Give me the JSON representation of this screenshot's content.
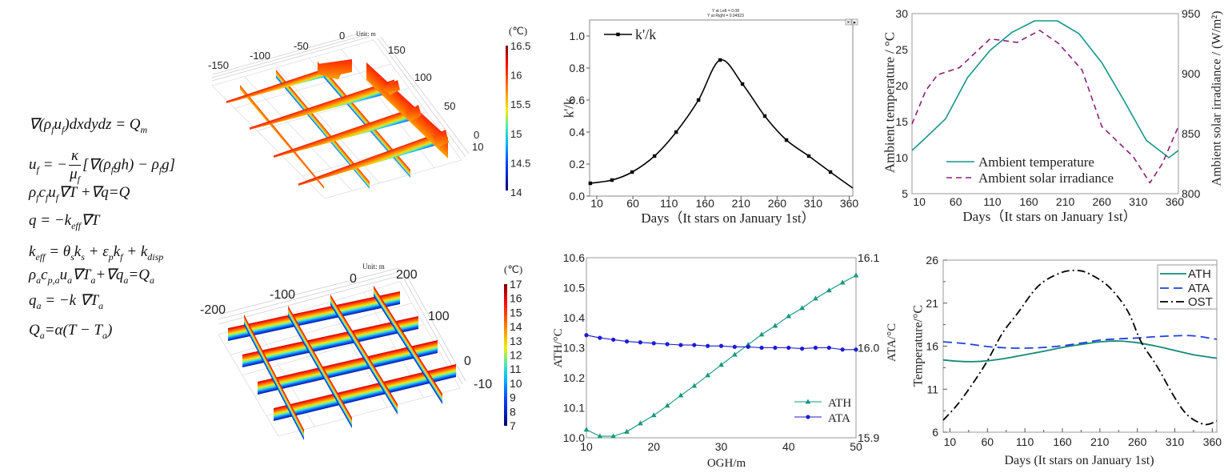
{
  "equations": [
    [
      [
        "∇("
      ],
      [
        "ρ",
        "f"
      ],
      [
        "u",
        "f"
      ],
      [
        ")dxdydz = "
      ],
      [
        "Q",
        "m"
      ]
    ],
    [
      [
        "u",
        "f"
      ],
      [
        " = −"
      ],
      {
        "num": [
          [
            "κ"
          ]
        ],
        "den": [
          [
            "μ",
            "f"
          ]
        ]
      },
      [
        "[∇("
      ],
      [
        "ρ",
        "f"
      ],
      [
        "gh) − "
      ],
      [
        "ρ",
        "f"
      ],
      [
        "g]"
      ]
    ],
    [
      [
        "ρ",
        "f"
      ],
      [
        "c",
        "f"
      ],
      [
        "u",
        "f"
      ],
      [
        "∇T +∇q=Q"
      ]
    ],
    [
      [
        "q = −"
      ],
      [
        "k",
        "eff"
      ],
      [
        "∇T"
      ]
    ],
    [
      [
        "k",
        "eff"
      ],
      [
        " = "
      ],
      [
        "θ",
        "s"
      ],
      [
        "k",
        "s"
      ],
      [
        " + "
      ],
      [
        "ε",
        "p"
      ],
      [
        "k",
        "f"
      ],
      [
        " + "
      ],
      [
        "k",
        "disp"
      ]
    ],
    [
      [
        "ρ",
        "a"
      ],
      [
        "c",
        "p,a"
      ],
      [
        "u",
        "a"
      ],
      [
        "∇"
      ],
      [
        "T",
        "a"
      ],
      [
        "+∇"
      ],
      [
        "q",
        "a"
      ],
      [
        "="
      ],
      [
        "Q",
        "a"
      ]
    ],
    [
      [
        "q",
        "a"
      ],
      [
        " = −k ∇"
      ],
      [
        "T",
        "a"
      ]
    ],
    [
      [
        "Q",
        "a"
      ],
      [
        "=α(T − "
      ],
      [
        "T",
        "a"
      ],
      [
        ")"
      ]
    ]
  ],
  "chart_data": [
    {
      "type": "surface",
      "unit_label": "Unit: m",
      "x_tick_labels": [
        "-150",
        "-100",
        "-50",
        "0"
      ],
      "y_tick_labels": [
        "150",
        "100",
        "50",
        "0"
      ],
      "z_tick_labels": [
        "10"
      ],
      "colorbar": {
        "label": "(℃)",
        "min": 14,
        "max": 16.5,
        "tick_labels": [
          "16.5",
          "16",
          "15.5",
          "15",
          "14.5",
          "14"
        ]
      }
    },
    {
      "type": "surface",
      "unit_label": "Unit: m",
      "x_tick_labels": [
        "-200",
        "-100",
        "0",
        "200"
      ],
      "y_tick_labels": [
        "100",
        "0"
      ],
      "z_tick_labels": [
        "-10"
      ],
      "colorbar": {
        "label": "(℃)",
        "min": 7,
        "max": 17,
        "tick_labels": [
          "17",
          "16",
          "15",
          "14",
          "13",
          "12",
          "11",
          "10",
          "9",
          "8",
          "7"
        ]
      }
    },
    {
      "type": "line",
      "xlabel": "Days（It stars on January 1st）",
      "ylabel": "k'/k",
      "xlim": [
        0,
        365
      ],
      "ylim": [
        0,
        1.1
      ],
      "xticks": [
        10,
        60,
        110,
        160,
        210,
        260,
        310,
        360
      ],
      "xtick_labels": [
        "10",
        "60",
        "110",
        "160",
        "210",
        "260",
        "310",
        "360"
      ],
      "yticks": [
        0,
        0.2,
        0.4,
        0.6,
        0.8,
        1.0
      ],
      "ytick_labels": [
        "0.0",
        "0.2",
        "0.4",
        "0.6",
        "0.8",
        "1.0"
      ],
      "legend": "top-left",
      "annotation": [
        "Y at Left = 0.08",
        "Y at Right = 0.04923"
      ],
      "toolbar_icons": [
        "close-icon",
        "arrow-right-icon"
      ],
      "series": [
        {
          "name": "k'/k",
          "color": "#000000",
          "style": "solid",
          "marker": "square",
          "axis": "left",
          "x": [
            1,
            31,
            59,
            90,
            120,
            151,
            181,
            212,
            243,
            273,
            304,
            334,
            365
          ],
          "y": [
            0.08,
            0.1,
            0.15,
            0.25,
            0.4,
            0.6,
            0.85,
            0.7,
            0.5,
            0.35,
            0.25,
            0.15,
            0.05
          ]
        }
      ]
    },
    {
      "type": "line",
      "xlabel": "Days（It stars on January 1st）",
      "ylabel": "Ambient temperature / °C",
      "y2label": "Ambient solar irradiance / (W/m²)",
      "xlim": [
        0,
        365
      ],
      "ylim": [
        5,
        30
      ],
      "y2lim": [
        800,
        950
      ],
      "xticks": [
        10,
        60,
        110,
        160,
        210,
        260,
        310,
        360
      ],
      "xtick_labels": [
        "10",
        "60",
        "110",
        "160",
        "210",
        "260",
        "310",
        "360"
      ],
      "yticks": [
        5,
        10,
        15,
        20,
        25,
        30
      ],
      "ytick_labels": [
        "5",
        "10",
        "15",
        "20",
        "25",
        "30"
      ],
      "y2ticks": [
        800,
        850,
        900,
        950
      ],
      "y2tick_labels": [
        "800",
        "850",
        "900",
        "950"
      ],
      "legend": "bottom-left",
      "series": [
        {
          "name": "Ambient temperature",
          "color": "#15968a",
          "style": "solid",
          "axis": "left",
          "x": [
            0,
            15,
            46,
            76,
            107,
            137,
            168,
            199,
            229,
            260,
            290,
            321,
            352,
            365
          ],
          "y": [
            11.0,
            12.4,
            15.4,
            21.1,
            24.9,
            27.4,
            29.0,
            29.0,
            27.2,
            23.2,
            18.0,
            12.4,
            10.0,
            11.0
          ]
        },
        {
          "name": "Ambient solar irradiance",
          "color": "#8a1f7c",
          "style": "dashed",
          "axis": "right",
          "x": [
            0,
            19,
            35,
            65,
            107,
            144,
            175,
            201,
            233,
            260,
            272,
            296,
            303,
            326,
            343,
            365
          ],
          "y": [
            858,
            886,
            899,
            905,
            929,
            926,
            936,
            925,
            903,
            856,
            849,
            835,
            831,
            809,
            825,
            856
          ]
        }
      ]
    },
    {
      "type": "line",
      "xlabel": "OGH/m",
      "ylabel": "ATH/°C",
      "y2label": "ATA/°C",
      "xlim": [
        10,
        50
      ],
      "ylim": [
        10.0,
        10.6
      ],
      "y2lim": [
        15.9,
        16.1
      ],
      "xticks": [
        10,
        20,
        30,
        40,
        50
      ],
      "xtick_labels": [
        "10",
        "20",
        "30",
        "40",
        "50"
      ],
      "yticks": [
        10.0,
        10.1,
        10.2,
        10.3,
        10.4,
        10.5,
        10.6
      ],
      "ytick_labels": [
        "10.0",
        "10.1",
        "10.2",
        "10.3",
        "10.4",
        "10.5",
        "10.6"
      ],
      "y2ticks": [
        15.9,
        16.0,
        16.1
      ],
      "y2tick_labels": [
        "15.9",
        "16.0",
        "16.1"
      ],
      "legend": "bottom-right",
      "series": [
        {
          "name": "ATH",
          "color": "#17977f",
          "style": "solid",
          "marker": "triangle",
          "axis": "left",
          "x": [
            10,
            12,
            14,
            16,
            18,
            20,
            22,
            24,
            26,
            28,
            30,
            32,
            34,
            36,
            38,
            40,
            42,
            44,
            46,
            48,
            50
          ],
          "y": [
            10.027,
            10.005,
            10.005,
            10.02,
            10.048,
            10.075,
            10.107,
            10.141,
            10.173,
            10.208,
            10.243,
            10.277,
            10.31,
            10.344,
            10.373,
            10.405,
            10.432,
            10.464,
            10.491,
            10.517,
            10.541
          ]
        },
        {
          "name": "ATA",
          "color": "#1d1dd2",
          "style": "solid",
          "marker": "circle",
          "axis": "right",
          "x": [
            10,
            12,
            14,
            16,
            18,
            20,
            22,
            24,
            26,
            28,
            30,
            32,
            34,
            36,
            38,
            40,
            42,
            44,
            46,
            48,
            50
          ],
          "y": [
            16.014,
            16.011,
            16.009,
            16.007,
            16.006,
            16.005,
            16.004,
            16.003,
            16.003,
            16.002,
            16.002,
            16.001,
            16.001,
            16.0,
            16.0,
            16.0,
            15.999,
            16.0,
            16.0,
            15.998,
            15.998
          ]
        }
      ]
    },
    {
      "type": "line",
      "xlabel": "Days (It stars on January 1st)",
      "ylabel": "Temperature/°C",
      "xlim": [
        1,
        366
      ],
      "ylim": [
        6,
        26
      ],
      "xticks": [
        10,
        60,
        110,
        160,
        210,
        260,
        310,
        360
      ],
      "xtick_labels": [
        "10",
        "60",
        "110",
        "160",
        "210",
        "260",
        "310",
        "360"
      ],
      "yticks": [
        6,
        11,
        16,
        21,
        26
      ],
      "ytick_labels": [
        "6",
        "11",
        "16",
        "21",
        "26"
      ],
      "legend": "top-right",
      "series": [
        {
          "name": "ATH",
          "color": "#138a78",
          "style": "solid",
          "axis": "left",
          "x": [
            1,
            20,
            40,
            60,
            85,
            110,
            135,
            160,
            185,
            210,
            235,
            260,
            285,
            310,
            335,
            366
          ],
          "y": [
            14.4,
            14.25,
            14.2,
            14.3,
            14.6,
            15.0,
            15.4,
            15.85,
            16.2,
            16.5,
            16.6,
            16.4,
            16.0,
            15.5,
            15.0,
            14.6
          ]
        },
        {
          "name": "ATA",
          "color": "#1f3fe0",
          "style": "dashed",
          "axis": "left",
          "x": [
            1,
            30,
            60,
            85,
            110,
            135,
            160,
            185,
            210,
            235,
            260,
            285,
            310,
            335,
            366
          ],
          "y": [
            16.5,
            16.3,
            15.95,
            15.8,
            15.77,
            15.85,
            16.05,
            16.35,
            16.7,
            16.85,
            16.95,
            17.1,
            17.2,
            17.2,
            16.8
          ]
        },
        {
          "name": "OST",
          "color": "#000000",
          "style": "dashdot",
          "axis": "left",
          "x": [
            1,
            20,
            40,
            60,
            80,
            100,
            128,
            157,
            179,
            196,
            222,
            247,
            265,
            286,
            310,
            328,
            350,
            366
          ],
          "y": [
            7.4,
            9.2,
            11.6,
            14.3,
            17.5,
            19.8,
            23.0,
            24.5,
            24.8,
            24.4,
            22.9,
            20.1,
            16.5,
            13.7,
            10.0,
            7.9,
            6.9,
            7.3
          ]
        }
      ]
    }
  ]
}
